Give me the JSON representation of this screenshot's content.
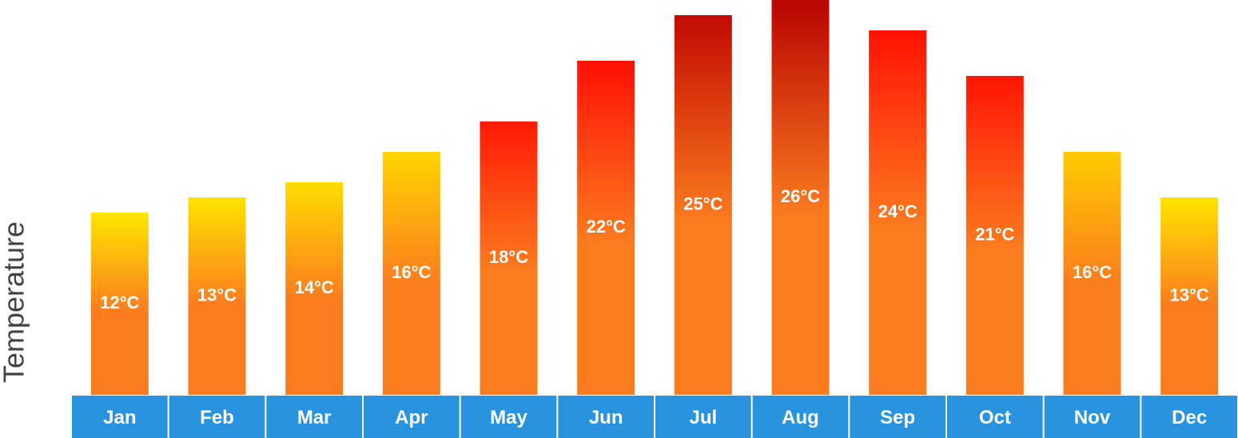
{
  "chart_data": {
    "type": "bar",
    "y_label": "Temperature",
    "categories": [
      "Jan",
      "Feb",
      "Mar",
      "Apr",
      "May",
      "Jun",
      "Jul",
      "Aug",
      "Sep",
      "Oct",
      "Nov",
      "Dec"
    ],
    "values": [
      12,
      13,
      14,
      16,
      18,
      22,
      25,
      26,
      24,
      21,
      16,
      13
    ],
    "value_labels": [
      "12°C",
      "13°C",
      "14°C",
      "16°C",
      "18°C",
      "22°C",
      "25°C",
      "26°C",
      "24°C",
      "21°C",
      "16°C",
      "13°C"
    ],
    "colors": [
      "#ffe600",
      "#ffe300",
      "#ffdc00",
      "#ffd400",
      "#ff1a05",
      "#ff1005",
      "#c20a02",
      "#b80402",
      "#ff1205",
      "#ff1505",
      "#ffcb00",
      "#ffe400"
    ],
    "base_color": "#fb7c1f",
    "axis_color": "#2a93e0",
    "ylim": [
      0,
      26
    ]
  }
}
